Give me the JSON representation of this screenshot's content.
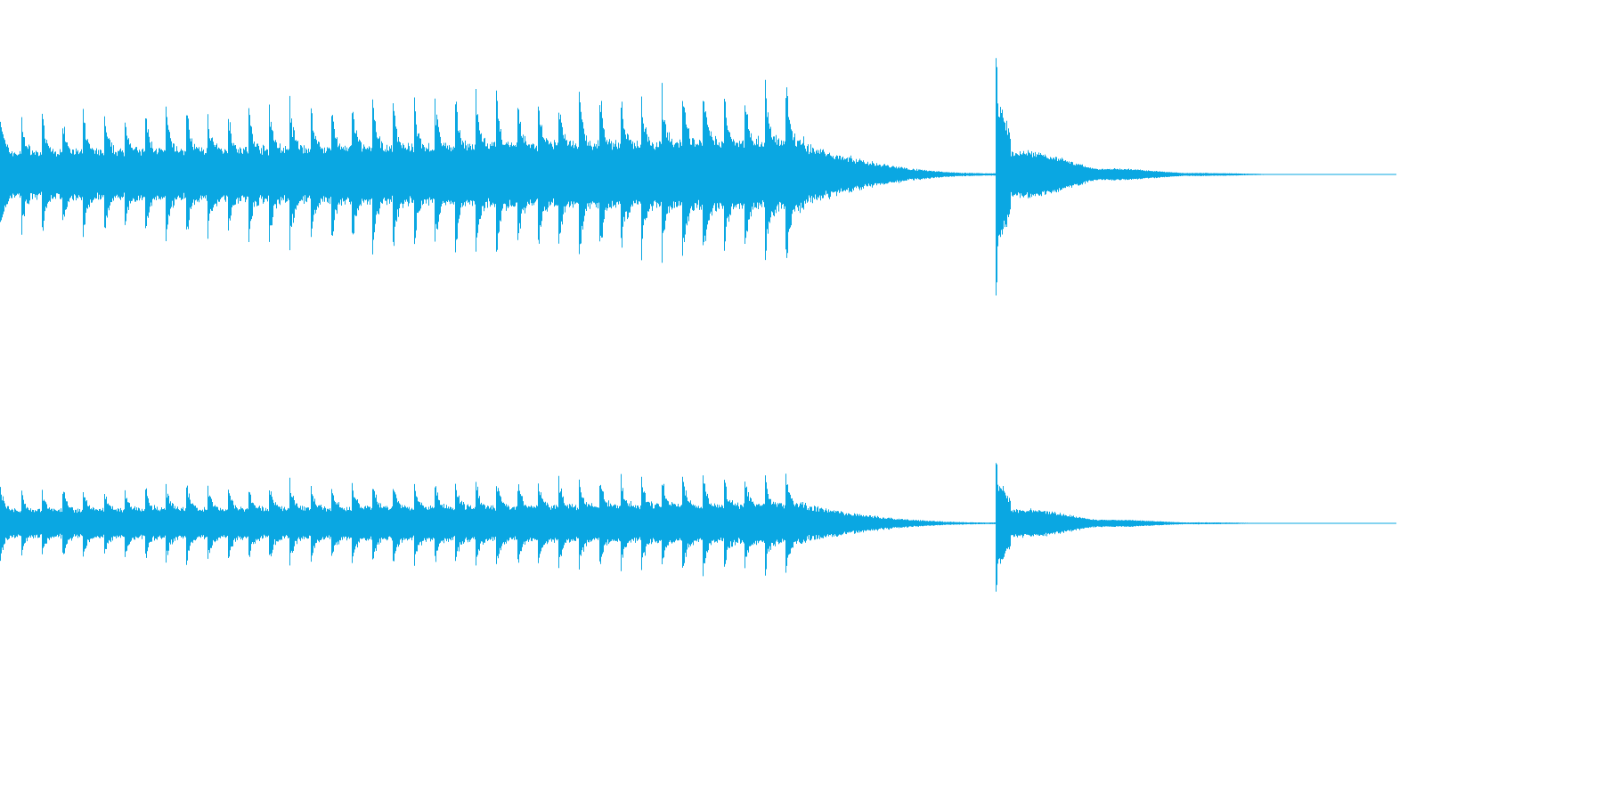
{
  "waveform": {
    "color": "#0aa7e2",
    "channels": [
      {
        "name": "",
        "segments": [
          {
            "label": "",
            "pattern": "repeating-hits",
            "hit_count": 39,
            "start_amp": 0.55,
            "end_amp": 0.85
          },
          {
            "label": "",
            "pattern": "decay",
            "start_amp": 0.25,
            "end_amp": 0.01
          },
          {
            "label": "",
            "pattern": "transient-decay",
            "peak_amp": 1.0,
            "tail_amp": 0.3
          }
        ]
      },
      {
        "name": "",
        "segments": [
          {
            "label": "",
            "pattern": "repeating-hits",
            "hit_count": 39,
            "start_amp": 0.45,
            "end_amp": 0.65
          },
          {
            "label": "",
            "pattern": "decay",
            "start_amp": 0.2,
            "end_amp": 0.01
          },
          {
            "label": "",
            "pattern": "transient-decay",
            "peak_amp": 0.8,
            "tail_amp": 0.25
          }
        ]
      }
    ]
  }
}
